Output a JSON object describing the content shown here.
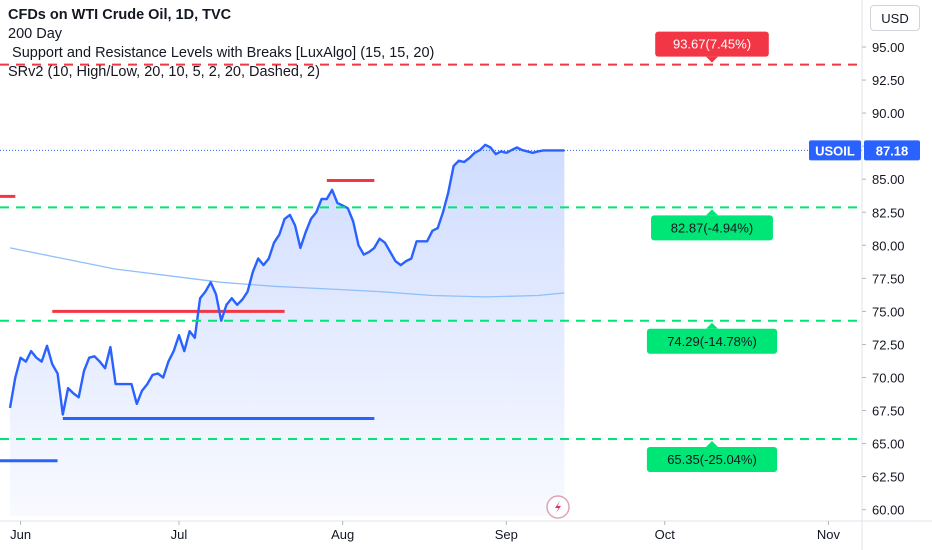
{
  "header": {
    "title": "CFDs on WTI Crude Oil, 1D, TVC",
    "indicators": [
      "200 Day",
      " Support and Resistance Levels with Breaks [LuxAlgo] (15, 15, 20)",
      "SRv2 (10, High/Low, 20, 10, 5, 2, 20, Dashed, 2)"
    ],
    "currency_button": "USD"
  },
  "colors": {
    "price_line": "#2962ff",
    "area_fill": "#2962ff",
    "ma_line": "#90bff9",
    "resistance": "#f23645",
    "support": "#2962ff",
    "target_green": "#00e676",
    "target_red": "#f23645",
    "axis_text": "#131722",
    "grid_border": "#e0e3eb"
  },
  "chart_data": {
    "type": "line",
    "symbol": "USOIL",
    "last_price": "87.18",
    "x_tick_labels": [
      "Jun",
      "Jul",
      "Aug",
      "Sep",
      "Oct",
      "Nov"
    ],
    "x_tick_days": [
      2,
      32,
      63,
      94,
      124,
      155
    ],
    "y_ticks": [
      "60.00",
      "62.50",
      "65.00",
      "67.50",
      "70.00",
      "72.50",
      "75.00",
      "77.50",
      "80.00",
      "82.50",
      "85.00",
      "87.50",
      "90.00",
      "92.50",
      "95.00"
    ],
    "ylim": [
      59.5,
      97.0
    ],
    "x_unit_note": "day index from 2023-06-01",
    "series": [
      {
        "kind": "price",
        "x": [
          0,
          1,
          2,
          3,
          4,
          5,
          6,
          7,
          8,
          9,
          10,
          11,
          12,
          13,
          14,
          15,
          16,
          17,
          18,
          19,
          20,
          21,
          22,
          23,
          24,
          25,
          26,
          27,
          28,
          29,
          30,
          31,
          32,
          33,
          34,
          35,
          36,
          37,
          38,
          39,
          40,
          41,
          42,
          43,
          44,
          45,
          46,
          47,
          48,
          49,
          50,
          51,
          52,
          53,
          54,
          55,
          56,
          57,
          58,
          59,
          60,
          61,
          62,
          63,
          64,
          65,
          66,
          67,
          68,
          69,
          70,
          71,
          72,
          73,
          74,
          75,
          76,
          77,
          78,
          79,
          80,
          81,
          82,
          83,
          84,
          85,
          86,
          87,
          88,
          89,
          90,
          91,
          92,
          93,
          94,
          95,
          96,
          97,
          98,
          99,
          100,
          101,
          102,
          103,
          104,
          105
        ],
        "y": [
          67.7,
          70.0,
          71.5,
          71.2,
          72.0,
          71.5,
          71.2,
          72.4,
          71.0,
          70.3,
          67.2,
          69.2,
          68.8,
          68.5,
          70.5,
          71.5,
          71.6,
          71.2,
          70.7,
          72.3,
          69.5,
          69.5,
          69.5,
          69.5,
          68.0,
          69.0,
          69.5,
          70.2,
          70.3,
          70.0,
          71.2,
          72.0,
          73.2,
          72.0,
          73.5,
          73.0,
          76.0,
          76.5,
          77.2,
          76.3,
          74.3,
          75.5,
          76.0,
          75.5,
          75.9,
          76.5,
          78.0,
          79.0,
          78.5,
          79.0,
          80.2,
          80.8,
          82.0,
          82.3,
          81.5,
          79.8,
          81.0,
          82.0,
          82.5,
          83.5,
          83.5,
          84.2,
          83.2,
          83.0,
          82.8,
          81.8,
          80.0,
          79.3,
          79.5,
          79.8,
          80.5,
          80.2,
          79.5,
          78.8,
          78.5,
          78.8,
          79.0,
          80.3,
          80.3,
          80.3,
          81.1,
          81.3,
          82.5,
          84.0,
          86.0,
          86.4,
          86.3,
          86.6,
          87.0,
          87.2,
          87.6,
          87.4,
          86.9,
          87.1,
          87.0,
          87.2,
          87.4,
          87.2,
          87.1,
          87.0,
          87.1,
          87.18,
          87.18,
          87.18,
          87.18,
          87.18
        ]
      },
      {
        "kind": "moving_average",
        "name": "200 Day",
        "x": [
          0,
          10,
          20,
          30,
          40,
          50,
          60,
          70,
          80,
          90,
          100,
          105
        ],
        "y": [
          79.8,
          79.0,
          78.2,
          77.7,
          77.2,
          76.9,
          76.7,
          76.5,
          76.2,
          76.1,
          76.2,
          76.4
        ]
      }
    ],
    "horizontal_levels": {
      "resistance_segments": [
        {
          "x": [
            -6,
            1
          ],
          "y": 83.7
        },
        {
          "x": [
            8,
            52
          ],
          "y": 75.0
        },
        {
          "x": [
            60,
            69
          ],
          "y": 84.9
        }
      ],
      "support_segments": [
        {
          "x": [
            -6,
            9
          ],
          "y": 63.7
        },
        {
          "x": [
            10,
            69
          ],
          "y": 66.9
        }
      ],
      "dashed_targets": [
        {
          "y": 93.67,
          "label": "93.67(7.45%)",
          "color": "red"
        },
        {
          "y": 82.87,
          "label": "82.87(-4.94%)",
          "color": "green"
        },
        {
          "y": 74.29,
          "label": "74.29(-14.78%)",
          "color": "green"
        },
        {
          "y": 65.35,
          "label": "65.35(-25.04%)",
          "color": "green"
        }
      ]
    }
  }
}
